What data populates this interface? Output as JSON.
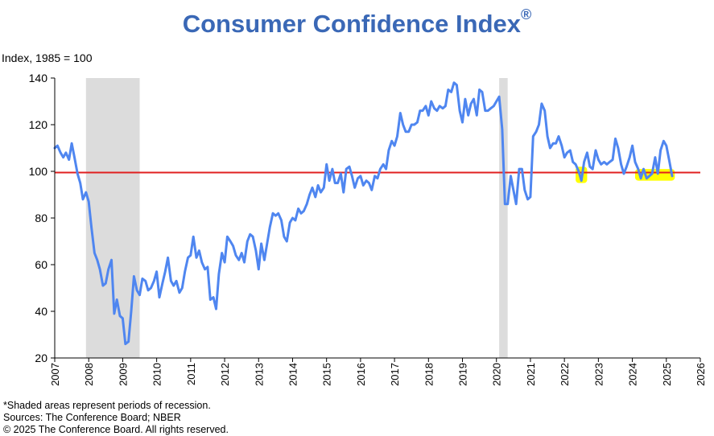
{
  "title": "Consumer Confidence Index",
  "title_mark": "®",
  "ylabel": "Index, 1985 = 100",
  "notes": [
    "*Shaded areas represent periods of recession.",
    "Sources: The Conference Board;  NBER",
    "© 2025 The Conference Board. All rights reserved."
  ],
  "colors": {
    "title": "#3a68b6",
    "series": "#4f86f0",
    "reference": "#e02020",
    "recession": "#dcdcdc",
    "highlight": "#ffff00"
  },
  "chart_data": {
    "type": "line",
    "title": "Consumer Confidence Index",
    "ylabel": "Index, 1985 = 100",
    "xlabel": "",
    "xlim": [
      2007,
      2026
    ],
    "ylim": [
      20,
      140
    ],
    "x_ticks": [
      2007,
      2008,
      2009,
      2010,
      2011,
      2012,
      2013,
      2014,
      2015,
      2016,
      2017,
      2018,
      2019,
      2020,
      2021,
      2022,
      2023,
      2024,
      2025,
      2026
    ],
    "y_ticks": [
      20,
      40,
      60,
      80,
      100,
      120,
      140
    ],
    "grid": false,
    "reference_line": 99.5,
    "recessions": [
      [
        2007.92,
        2009.5
      ],
      [
        2020.08,
        2020.33
      ]
    ],
    "highlights": [
      [
        2022.33,
        2022.67,
        95,
        102
      ],
      [
        2024.08,
        2025.25,
        96,
        101
      ]
    ],
    "series": [
      {
        "x": [
          2007.0,
          2007.08,
          2007.17,
          2007.25,
          2007.33,
          2007.42,
          2007.5,
          2007.58,
          2007.67,
          2007.75,
          2007.83,
          2007.92,
          2008.0,
          2008.08,
          2008.17,
          2008.25,
          2008.33,
          2008.42,
          2008.5,
          2008.58,
          2008.67,
          2008.75,
          2008.83,
          2008.92,
          2009.0,
          2009.08,
          2009.17,
          2009.25,
          2009.33,
          2009.42,
          2009.5,
          2009.58,
          2009.67,
          2009.75,
          2009.83,
          2009.92,
          2010.0,
          2010.08,
          2010.17,
          2010.25,
          2010.33,
          2010.42,
          2010.5,
          2010.58,
          2010.67,
          2010.75,
          2010.83,
          2010.92,
          2011.0,
          2011.08,
          2011.17,
          2011.25,
          2011.33,
          2011.42,
          2011.5,
          2011.58,
          2011.67,
          2011.75,
          2011.83,
          2011.92,
          2012.0,
          2012.08,
          2012.17,
          2012.25,
          2012.33,
          2012.42,
          2012.5,
          2012.58,
          2012.67,
          2012.75,
          2012.83,
          2012.92,
          2013.0,
          2013.08,
          2013.17,
          2013.25,
          2013.33,
          2013.42,
          2013.5,
          2013.58,
          2013.67,
          2013.75,
          2013.83,
          2013.92,
          2014.0,
          2014.08,
          2014.17,
          2014.25,
          2014.33,
          2014.42,
          2014.5,
          2014.58,
          2014.67,
          2014.75,
          2014.83,
          2014.92,
          2015.0,
          2015.08,
          2015.17,
          2015.25,
          2015.33,
          2015.42,
          2015.5,
          2015.58,
          2015.67,
          2015.75,
          2015.83,
          2015.92,
          2016.0,
          2016.08,
          2016.17,
          2016.25,
          2016.33,
          2016.42,
          2016.5,
          2016.58,
          2016.67,
          2016.75,
          2016.83,
          2016.92,
          2017.0,
          2017.08,
          2017.17,
          2017.25,
          2017.33,
          2017.42,
          2017.5,
          2017.58,
          2017.67,
          2017.75,
          2017.83,
          2017.92,
          2018.0,
          2018.08,
          2018.17,
          2018.25,
          2018.33,
          2018.42,
          2018.5,
          2018.58,
          2018.67,
          2018.75,
          2018.83,
          2018.92,
          2019.0,
          2019.08,
          2019.17,
          2019.25,
          2019.33,
          2019.42,
          2019.5,
          2019.58,
          2019.67,
          2019.75,
          2019.83,
          2019.92,
          2020.0,
          2020.08,
          2020.17,
          2020.25,
          2020.33,
          2020.42,
          2020.5,
          2020.58,
          2020.67,
          2020.75,
          2020.83,
          2020.92,
          2021.0,
          2021.08,
          2021.17,
          2021.25,
          2021.33,
          2021.42,
          2021.5,
          2021.58,
          2021.67,
          2021.75,
          2021.83,
          2021.92,
          2022.0,
          2022.08,
          2022.17,
          2022.25,
          2022.33,
          2022.42,
          2022.5,
          2022.58,
          2022.67,
          2022.75,
          2022.83,
          2022.92,
          2023.0,
          2023.08,
          2023.17,
          2023.25,
          2023.33,
          2023.42,
          2023.5,
          2023.58,
          2023.67,
          2023.75,
          2023.83,
          2023.92,
          2024.0,
          2024.08,
          2024.17,
          2024.25,
          2024.33,
          2024.42,
          2024.5,
          2024.58,
          2024.67,
          2024.75,
          2024.83,
          2024.92,
          2025.0,
          2025.08,
          2025.17
        ],
        "y": [
          110,
          111,
          108,
          106,
          108,
          105,
          112,
          106,
          99,
          95,
          88,
          91,
          87,
          76,
          65,
          62,
          58,
          51,
          52,
          58,
          62,
          39,
          45,
          38,
          37,
          26,
          27,
          40,
          55,
          49,
          47,
          54,
          53,
          49,
          50,
          53,
          57,
          46,
          52,
          57,
          63,
          53,
          51,
          53,
          48,
          50,
          57,
          63,
          64,
          72,
          63,
          66,
          61,
          58,
          59,
          45,
          46,
          41,
          56,
          65,
          61,
          72,
          70,
          68,
          64,
          62,
          65,
          61,
          70,
          73,
          72,
          66,
          58,
          69,
          62,
          69,
          76,
          82,
          81,
          82,
          79,
          72,
          70,
          78,
          80,
          79,
          84,
          82,
          83,
          86,
          90,
          93,
          89,
          94,
          91,
          93,
          103,
          96,
          101,
          95,
          95,
          99,
          91,
          101,
          102,
          98,
          93,
          97,
          98,
          94,
          96,
          95,
          92,
          98,
          97,
          101,
          103,
          101,
          109,
          113,
          111,
          115,
          125,
          120,
          117,
          117,
          120,
          120,
          121,
          126,
          126,
          128,
          124,
          130,
          127,
          126,
          128,
          127,
          128,
          135,
          134,
          138,
          137,
          126,
          121,
          131,
          124,
          129,
          131,
          124,
          135,
          134,
          126,
          126,
          127,
          128,
          130,
          132,
          118,
          86,
          86,
          98,
          92,
          86,
          101,
          101,
          92,
          88,
          89,
          115,
          117,
          120,
          129,
          126,
          115,
          110,
          112,
          112,
          115,
          111,
          106,
          108,
          109,
          104,
          103,
          100,
          96,
          104,
          108,
          102,
          101,
          109,
          105,
          103,
          104,
          103,
          104,
          105,
          114,
          110,
          103,
          99,
          102,
          106,
          111,
          104,
          101,
          97,
          101,
          97,
          98,
          99,
          106,
          99,
          109,
          113,
          111,
          105,
          98
        ]
      }
    ]
  }
}
